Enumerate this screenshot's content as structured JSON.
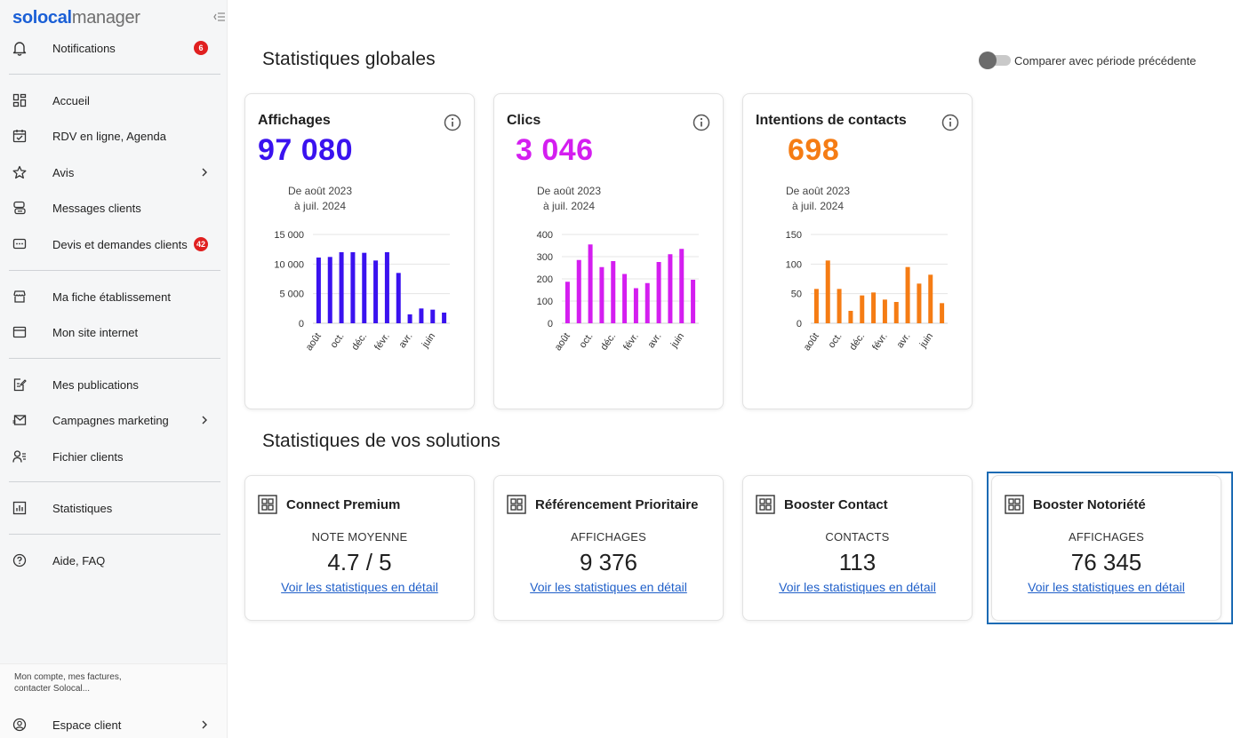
{
  "brand": {
    "logo_part1": "solocal",
    "logo_part2": "manager"
  },
  "sidebar": {
    "items": [
      {
        "label": "Notifications",
        "badge": "6"
      },
      {
        "label": "Accueil"
      },
      {
        "label": "RDV en ligne, Agenda"
      },
      {
        "label": "Avis"
      },
      {
        "label": "Messages clients"
      },
      {
        "label": "Devis et demandes clients",
        "badge": "42"
      },
      {
        "label": "Ma fiche établissement"
      },
      {
        "label": "Mon site internet"
      },
      {
        "label": "Mes publications"
      },
      {
        "label": "Campagnes marketing"
      },
      {
        "label": "Fichier clients"
      },
      {
        "label": "Statistiques"
      },
      {
        "label": "Aide, FAQ"
      }
    ],
    "footer_description": "Mon compte, mes factures, contacter Solocal...",
    "footer_item": "Espace client"
  },
  "main": {
    "global_title": "Statistiques globales",
    "compare_label": "Comparer avec période précédente",
    "solutions_title": "Statistiques de vos solutions"
  },
  "colors": {
    "affichages": "#3a12ef",
    "clics": "#d41ef0",
    "intentions": "#f57c14",
    "link": "#1f5fc9",
    "badge": "#e02020"
  },
  "stats": [
    {
      "title": "Affichages",
      "value": "97 080",
      "period_line1": "De août 2023",
      "period_line2": "à juil. 2024"
    },
    {
      "title": "Clics",
      "value": "3 046",
      "period_line1": "De août 2023",
      "period_line2": "à juil. 2024"
    },
    {
      "title": "Intentions de contacts",
      "value": "698",
      "period_line1": "De août 2023",
      "period_line2": "à juil. 2024"
    }
  ],
  "chart_data": [
    {
      "type": "bar",
      "title": "Affichages",
      "categories": [
        "août",
        "sept.",
        "oct.",
        "nov.",
        "déc.",
        "janv.",
        "févr.",
        "mars",
        "avr.",
        "mai",
        "juin",
        "juil."
      ],
      "tick_labels_x": [
        "août",
        "oct.",
        "déc.",
        "févr.",
        "avr.",
        "juin"
      ],
      "values": [
        11100,
        11200,
        12000,
        12000,
        11900,
        10600,
        12000,
        8500,
        1500,
        2500,
        2300,
        1800
      ],
      "yticks": [
        "0",
        "5 000",
        "10 000",
        "15 000"
      ],
      "ylim": [
        0,
        15000
      ],
      "color": "#3a12ef",
      "grid": true
    },
    {
      "type": "bar",
      "title": "Clics",
      "categories": [
        "août",
        "sept.",
        "oct.",
        "nov.",
        "déc.",
        "janv.",
        "févr.",
        "mars",
        "avr.",
        "mai",
        "juin",
        "juil."
      ],
      "tick_labels_x": [
        "août",
        "oct.",
        "déc.",
        "févr.",
        "avr.",
        "juin"
      ],
      "values": [
        187,
        285,
        355,
        253,
        280,
        222,
        158,
        181,
        276,
        311,
        335,
        196
      ],
      "yticks": [
        "0",
        "100",
        "200",
        "300",
        "400"
      ],
      "ylim": [
        0,
        400
      ],
      "color": "#d41ef0",
      "grid": true
    },
    {
      "type": "bar",
      "title": "Intentions de contacts",
      "categories": [
        "août",
        "sept.",
        "oct.",
        "nov.",
        "déc.",
        "janv.",
        "févr.",
        "mars",
        "avr.",
        "mai",
        "juin",
        "juil."
      ],
      "tick_labels_x": [
        "août",
        "oct.",
        "déc.",
        "févr.",
        "avr.",
        "juin"
      ],
      "values": [
        58,
        106,
        58,
        21,
        47,
        52,
        40,
        36,
        95,
        67,
        82,
        34
      ],
      "yticks": [
        "0",
        "50",
        "100",
        "150"
      ],
      "ylim": [
        0,
        150
      ],
      "color": "#f57c14",
      "grid": true
    }
  ],
  "solutions": [
    {
      "title": "Connect Premium",
      "metric": "NOTE MOYENNE",
      "value": "4.7 / 5",
      "link": "Voir les statistiques en détail"
    },
    {
      "title": "Référencement Prioritaire",
      "metric": "AFFICHAGES",
      "value": "9 376",
      "link": "Voir les statistiques en détail"
    },
    {
      "title": "Booster Contact",
      "metric": "CONTACTS",
      "value": "113",
      "link": "Voir les statistiques en détail"
    },
    {
      "title": "Booster Notoriété",
      "metric": "AFFICHAGES",
      "value": "76 345",
      "link": "Voir les statistiques en détail"
    }
  ]
}
